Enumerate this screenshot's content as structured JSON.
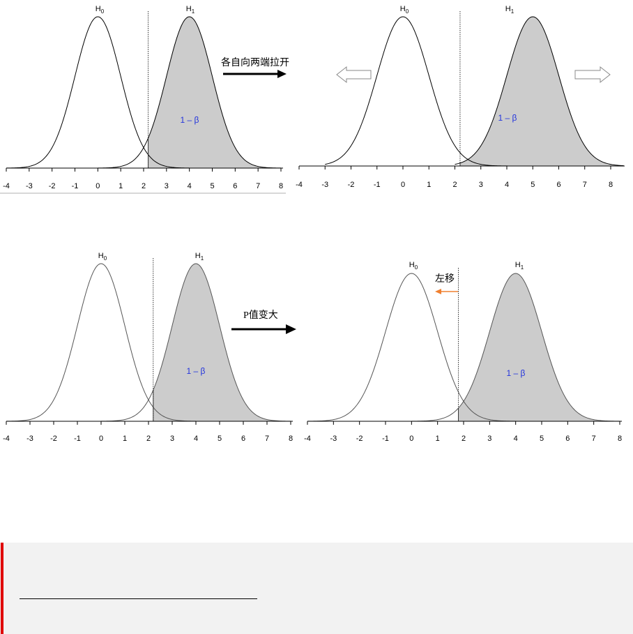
{
  "panels": [
    {
      "id": "top-left",
      "h0_label": "H",
      "h0_sub": "0",
      "h1_label": "H",
      "h1_sub": "1",
      "power_label": "1 – β",
      "h0_mean": 0,
      "h1_mean": 4,
      "sd": 1,
      "critical": 2.2,
      "ticks": [
        "-4",
        "-3",
        "-2",
        "-1",
        "0",
        "1",
        "2",
        "3",
        "4",
        "5",
        "6",
        "7",
        "8"
      ]
    },
    {
      "id": "top-right",
      "h0_label": "H",
      "h0_sub": "0",
      "h1_label": "H",
      "h1_sub": "1",
      "power_label": "1 – β",
      "h0_mean": 0,
      "h1_mean": 5,
      "sd": 1,
      "critical": 2.2,
      "ticks": [
        "-4",
        "-3",
        "-2",
        "-1",
        "0",
        "1",
        "2",
        "3",
        "4",
        "5",
        "6",
        "7",
        "8"
      ]
    },
    {
      "id": "bottom-left",
      "h0_label": "H",
      "h0_sub": "0",
      "h1_label": "H",
      "h1_sub": "1",
      "power_label": "1 – β",
      "h0_mean": 0,
      "h1_mean": 4,
      "sd": 1,
      "critical": 2.2,
      "ticks": [
        "-4",
        "-3",
        "-2",
        "-1",
        "0",
        "1",
        "2",
        "3",
        "4",
        "5",
        "6",
        "7",
        "8"
      ]
    },
    {
      "id": "bottom-right",
      "h0_label": "H",
      "h0_sub": "0",
      "h1_label": "H",
      "h1_sub": "1",
      "power_label": "1 – β",
      "h0_mean": 0,
      "h1_mean": 4,
      "sd": 1,
      "critical": 1.8,
      "ticks": [
        "-4",
        "-3",
        "-2",
        "-1",
        "0",
        "1",
        "2",
        "3",
        "4",
        "5",
        "6",
        "7",
        "8"
      ],
      "shift_label": "左移"
    }
  ],
  "arrows": {
    "top_label": "各自向两端拉开",
    "bottom_label": "P值变大"
  },
  "colors": {
    "shade": "#cccccc",
    "power_text": "#2233dd",
    "shift_arrow": "#f08030",
    "note_bar": "#e00000",
    "note_bg": "#f2f2f2"
  }
}
